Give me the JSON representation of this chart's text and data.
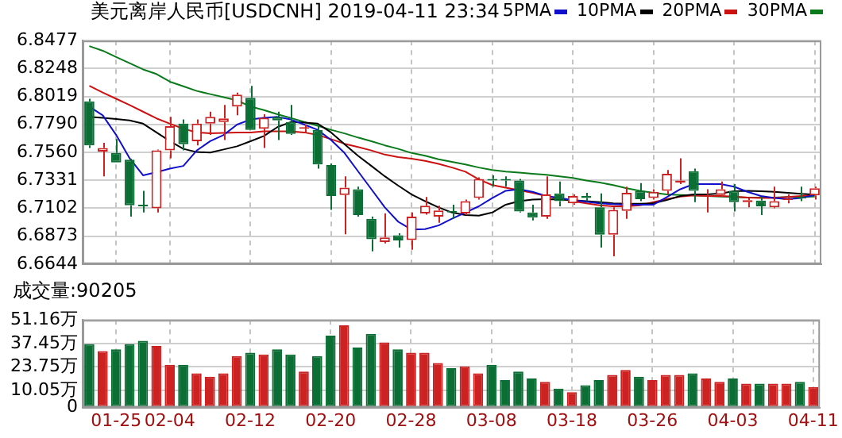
{
  "chart_data": [
    {
      "type": "candlestick",
      "title": "美元离岸人民币[USDCNH] 2019-04-11 23:34",
      "categories": [
        null,
        null,
        null,
        null,
        null,
        null,
        null,
        null,
        null,
        null,
        null,
        null,
        null,
        null,
        null,
        null,
        null,
        null,
        null,
        null,
        null,
        null,
        null,
        null,
        null,
        null,
        null,
        null,
        null,
        null,
        null,
        null,
        null,
        null,
        null,
        null,
        null,
        null,
        null,
        null,
        null,
        null,
        null,
        null,
        null,
        null,
        null,
        null,
        null,
        null,
        null,
        null,
        null,
        null,
        null
      ],
      "tick_labels": "y",
      "ohlc": [
        [
          6.7979,
          6.8,
          6.7597,
          6.7618
        ],
        [
          6.7567,
          6.7639,
          6.7364,
          6.7597
        ],
        [
          6.7555,
          6.7669,
          6.7478,
          6.7478
        ],
        [
          6.75,
          6.7508,
          6.7033,
          6.7126
        ],
        [
          6.7126,
          6.7245,
          6.7067,
          6.7118
        ],
        [
          6.7101,
          6.7584,
          6.7067,
          6.7576
        ],
        [
          6.7576,
          6.7851,
          6.7512,
          6.7775
        ],
        [
          6.7796,
          6.783,
          6.7576,
          6.7627
        ],
        [
          6.7652,
          6.783,
          6.7618,
          6.7796
        ],
        [
          6.7796,
          6.7894,
          6.7703,
          6.7851
        ],
        [
          6.7809,
          6.7949,
          6.7661,
          6.7839
        ],
        [
          6.7936,
          6.8051,
          6.7864,
          6.8034
        ],
        [
          6.8008,
          6.8106,
          6.7745,
          6.7745
        ],
        [
          6.7754,
          6.7873,
          6.7597,
          6.7843
        ],
        [
          6.7851,
          6.7894,
          6.7661,
          6.7822
        ],
        [
          6.7809,
          6.7949,
          6.7703,
          6.7712
        ],
        [
          6.7754,
          6.7788,
          6.7724,
          6.7762
        ],
        [
          6.7745,
          6.7788,
          6.7427,
          6.7461
        ],
        [
          6.7457,
          6.747,
          6.7088,
          6.7203
        ],
        [
          6.7211,
          6.7364,
          6.6889,
          6.7271
        ],
        [
          6.7258,
          6.7279,
          6.7033,
          6.7046
        ],
        [
          6.7016,
          6.7033,
          6.6749,
          6.6847
        ],
        [
          6.6825,
          6.7059,
          6.6813,
          6.6863
        ],
        [
          6.688,
          6.6897,
          6.6779,
          6.6838
        ],
        [
          6.6842,
          6.7067,
          6.6762,
          6.7033
        ],
        [
          6.7059,
          6.7194,
          6.705,
          6.7122
        ],
        [
          6.7033,
          6.7122,
          6.6982,
          6.7084
        ],
        [
          6.7076,
          6.7131,
          6.7016,
          6.7067
        ],
        [
          6.7059,
          6.7173,
          6.7046,
          6.716
        ],
        [
          6.7186,
          6.7355,
          6.7173,
          6.7343
        ],
        [
          6.7343,
          6.7372,
          6.7279,
          6.733
        ],
        [
          6.7338,
          6.7364,
          6.7279,
          6.733
        ],
        [
          6.733,
          6.7343,
          6.7067,
          6.7076
        ],
        [
          6.7067,
          6.7131,
          6.7003,
          6.7025
        ],
        [
          6.7033,
          6.7364,
          6.7016,
          6.7215
        ],
        [
          6.7224,
          6.7321,
          6.7118,
          6.716
        ],
        [
          6.7143,
          6.7215,
          6.7131,
          6.7203
        ],
        [
          6.7203,
          6.7228,
          6.716,
          6.7186
        ],
        [
          6.7109,
          6.7224,
          6.6779,
          6.6885
        ],
        [
          6.6885,
          6.7109,
          6.6707,
          6.7088
        ],
        [
          6.708,
          6.7279,
          6.7016,
          6.7228
        ],
        [
          6.7245,
          6.7309,
          6.716,
          6.7177
        ],
        [
          6.7186,
          6.7258,
          6.7173,
          6.7237
        ],
        [
          6.7245,
          6.7415,
          6.7215,
          6.7385
        ],
        [
          6.7313,
          6.7512,
          6.73,
          6.733
        ],
        [
          6.7406,
          6.7427,
          6.7152,
          6.7245
        ],
        [
          6.7198,
          6.7258,
          6.7067,
          6.7211
        ],
        [
          6.7211,
          6.7321,
          6.7194,
          6.7258
        ],
        [
          6.7245,
          6.73,
          6.7076,
          6.7152
        ],
        [
          6.7152,
          6.7186,
          6.7109,
          6.7169
        ],
        [
          6.7165,
          6.7194,
          6.7046,
          6.7118
        ],
        [
          6.7109,
          6.7279,
          6.7101,
          6.716
        ],
        [
          6.7169,
          6.7215,
          6.7143,
          6.7182
        ],
        [
          6.7194,
          6.7279,
          6.716,
          6.7182
        ],
        [
          6.7207,
          6.7279,
          6.7173,
          6.7266
        ]
      ],
      "colors": [
        "#0b6e34",
        "#cc2222",
        "#0b6e34",
        "#0b6e34",
        "#0b6e34",
        "#cc2222",
        "#cc2222",
        "#0b6e34",
        "#cc2222",
        "#cc2222",
        "#cc2222",
        "#cc2222",
        "#0b6e34",
        "#cc2222",
        "#0b6e34",
        "#0b6e34",
        "#cc2222",
        "#0b6e34",
        "#0b6e34",
        "#cc2222",
        "#0b6e34",
        "#0b6e34",
        "#cc2222",
        "#0b6e34",
        "#cc2222",
        "#cc2222",
        "#cc2222",
        "#0b6e34",
        "#cc2222",
        "#cc2222",
        "#0b6e34",
        "#0b6e34",
        "#0b6e34",
        "#0b6e34",
        "#cc2222",
        "#0b6e34",
        "#cc2222",
        "#0b6e34",
        "#0b6e34",
        "#cc2222",
        "#cc2222",
        "#0b6e34",
        "#cc2222",
        "#cc2222",
        "#cc2222",
        "#0b6e34",
        "#cc2222",
        "#cc2222",
        "#0b6e34",
        "#cc2222",
        "#0b6e34",
        "#cc2222",
        "#cc2222",
        "#0b6e34",
        "#cc2222"
      ],
      "series": [
        {
          "name": "5PMA",
          "type": "line",
          "color": "#1010cc",
          "values": [
            6.7936,
            6.7864,
            6.7703,
            6.7512,
            6.7372,
            6.7398,
            6.7427,
            6.7449,
            6.7576,
            6.7652,
            6.7703,
            6.7788,
            6.783,
            6.7843,
            6.7851,
            6.783,
            6.7788,
            6.7745,
            6.7661,
            6.7555,
            6.7406,
            6.7258,
            6.7109,
            6.6991,
            6.6927,
            6.6931,
            6.6961,
            6.7016,
            6.7067,
            6.7118,
            6.7186,
            6.7245,
            6.7258,
            6.7237,
            6.7203,
            6.7186,
            6.7169,
            6.7156,
            6.7143,
            6.7135,
            6.7131,
            6.7131,
            6.7131,
            6.7194,
            6.7258,
            6.73,
            6.73,
            6.73,
            6.7279,
            6.7237,
            6.7203,
            6.7186,
            6.7177,
            6.7186,
            6.7211
          ]
        },
        {
          "name": "10PMA",
          "type": "line",
          "color": "#000000",
          "values": [
            6.7851,
            6.7843,
            6.7834,
            6.7822,
            6.7796,
            6.7724,
            6.7652,
            6.7589,
            6.7563,
            6.7559,
            6.7584,
            6.761,
            6.7652,
            6.7695,
            6.7767,
            6.7809,
            6.7805,
            6.7796,
            6.7724,
            6.7627,
            6.7533,
            6.7449,
            6.7364,
            6.7287,
            6.7215,
            6.716,
            6.7109,
            6.7067,
            6.7046,
            6.7042,
            6.7067,
            6.7131,
            6.716,
            6.7173,
            6.7177,
            6.7173,
            6.7169,
            6.716,
            6.7152,
            6.7143,
            6.7139,
            6.7139,
            6.7143,
            6.7169,
            6.7203,
            6.7215,
            6.7215,
            6.7224,
            6.7241,
            6.7245,
            6.7241,
            6.7237,
            6.7228,
            6.722,
            6.7215
          ]
        },
        {
          "name": "20PMA",
          "type": "line",
          "color": "#cc1111",
          "values": [
            6.8106,
            6.8051,
            6.8,
            6.7949,
            6.7894,
            6.7839,
            6.7796,
            6.7754,
            6.7724,
            6.7716,
            6.772,
            6.7724,
            6.7724,
            6.7733,
            6.7733,
            6.7733,
            6.7724,
            6.7703,
            6.7669,
            6.7631,
            6.7605,
            6.7576,
            6.7542,
            6.7521,
            6.7508,
            6.7491,
            6.7466,
            6.7436,
            6.7402,
            6.7338,
            6.7292,
            6.7271,
            6.7249,
            6.7228,
            6.7203,
            6.7182,
            6.716,
            6.7143,
            6.7126,
            6.7118,
            6.7118,
            6.7126,
            6.7152,
            6.7177,
            6.7198,
            6.7207,
            6.7203,
            6.7203,
            6.7198,
            6.719,
            6.7186,
            6.7186,
            6.7194,
            6.7203,
            6.7211
          ]
        },
        {
          "name": "30PMA",
          "type": "line",
          "color": "#0a7a1a",
          "values": [
            6.8432,
            6.8394,
            6.8343,
            6.8292,
            6.8241,
            6.8203,
            6.814,
            6.8102,
            6.8064,
            6.8038,
            6.8013,
            6.7987,
            6.7936,
            6.7907,
            6.7873,
            6.7843,
            6.7809,
            6.7779,
            6.7745,
            6.7716,
            6.7682,
            6.7652,
            6.7618,
            6.7589,
            6.7555,
            6.7533,
            6.7504,
            6.7483,
            6.7461,
            6.7436,
            6.7415,
            6.7402,
            6.7394,
            6.7385,
            6.7377,
            6.7364,
            6.7351,
            6.733,
            6.7313,
            6.7292,
            6.7266,
            6.7245,
            6.7228,
            6.7215,
            6.7211,
            6.7207,
            6.7203,
            6.7198,
            6.7194,
            6.719,
            6.719,
            6.719,
            6.7194,
            6.7194,
            6.7198
          ]
        }
      ],
      "marker": "none",
      "ylim": [
        6.6644,
        6.8477
      ],
      "yticks": [
        6.6644,
        6.6873,
        {
          "value": 6.7102,
          "label": "6.7102"
        },
        6.7331,
        {
          "value": 6.756,
          "label": "6.7560"
        },
        {
          "value": 6.779,
          "label": "6.7790"
        },
        6.8019,
        6.8248,
        6.8477
      ],
      "grid": true,
      "legend": "top right"
    },
    {
      "type": "bar",
      "title": "成交量:90205",
      "categories": [
        null,
        null,
        "01-25",
        null,
        null,
        null,
        "02-04",
        null,
        null,
        null,
        null,
        null,
        "02-12",
        null,
        null,
        null,
        null,
        null,
        "02-20",
        null,
        null,
        null,
        null,
        null,
        "02-28",
        null,
        null,
        null,
        null,
        null,
        "03-08",
        null,
        null,
        null,
        null,
        null,
        "03-18",
        null,
        null,
        null,
        null,
        null,
        "03-26",
        null,
        null,
        null,
        null,
        null,
        "04-03",
        null,
        null,
        null,
        null,
        null,
        "04-11"
      ],
      "values": [
        37,
        33,
        34,
        37,
        39,
        36,
        25,
        25,
        20,
        18,
        20,
        30,
        32,
        31,
        34,
        31,
        21,
        30,
        42,
        48,
        35,
        43,
        38,
        34,
        32,
        32,
        26,
        23,
        24,
        20,
        25,
        16,
        21,
        17,
        15,
        11,
        9,
        13,
        16,
        19,
        22,
        18,
        16,
        19,
        19,
        20,
        17,
        15,
        17,
        14,
        14,
        14,
        14,
        15,
        12
      ],
      "colors": [
        "#0b6e34",
        "#cc2222",
        "#0b6e34",
        "#0b6e34",
        "#0b6e34",
        "#cc2222",
        "#cc2222",
        "#0b6e34",
        "#cc2222",
        "#cc2222",
        "#cc2222",
        "#cc2222",
        "#0b6e34",
        "#cc2222",
        "#0b6e34",
        "#0b6e34",
        "#cc2222",
        "#0b6e34",
        "#0b6e34",
        "#cc2222",
        "#0b6e34",
        "#0b6e34",
        "#cc2222",
        "#0b6e34",
        "#cc2222",
        "#cc2222",
        "#cc2222",
        "#0b6e34",
        "#cc2222",
        "#cc2222",
        "#0b6e34",
        "#0b6e34",
        "#0b6e34",
        "#0b6e34",
        "#cc2222",
        "#0b6e34",
        "#cc2222",
        "#0b6e34",
        "#0b6e34",
        "#cc2222",
        "#cc2222",
        "#0b6e34",
        "#cc2222",
        "#cc2222",
        "#cc2222",
        "#0b6e34",
        "#cc2222",
        "#cc2222",
        "#0b6e34",
        "#cc2222",
        "#0b6e34",
        "#cc2222",
        "#cc2222",
        "#0b6e34",
        "#cc2222"
      ],
      "ylim": [
        0,
        51.16
      ],
      "yticks": [
        0,
        {
          "value": 10.05,
          "label": "10.05万"
        },
        {
          "value": 23.75,
          "label": "23.75万"
        },
        {
          "value": 37.45,
          "label": "37.45万"
        },
        {
          "value": 51.16,
          "label": "51.16万"
        }
      ],
      "grid": true
    }
  ]
}
